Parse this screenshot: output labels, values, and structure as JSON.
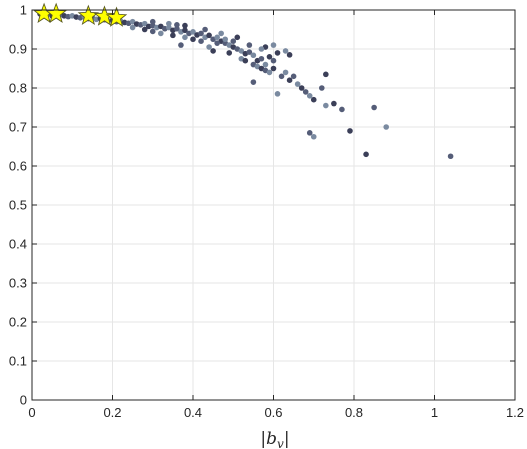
{
  "chart_data": {
    "type": "scatter",
    "xlabel": "|b_v|",
    "xlabel_parts": {
      "bar_left": "|",
      "var": "b",
      "sub": "v",
      "bar_right": "|"
    },
    "xlim": [
      0,
      1.2
    ],
    "ylim": [
      0,
      1
    ],
    "grid": true,
    "x_ticks": [
      0,
      0.2,
      0.4,
      0.6,
      0.8,
      1,
      1.2
    ],
    "x_tick_labels": [
      "0",
      "0.2",
      "0.4",
      "0.6",
      "0.8",
      "1",
      "1.2"
    ],
    "y_ticks": [
      0,
      0.1,
      0.2,
      0.3,
      0.4,
      0.5,
      0.6,
      0.7,
      0.8,
      0.9,
      1
    ],
    "y_tick_labels": [
      "0",
      "0.1",
      "0.2",
      "0.3",
      "0.4",
      "0.5",
      "0.6",
      "0.7",
      "0.8",
      "0.9",
      "1"
    ],
    "colors": {
      "point_dark": "#3b3f58",
      "point_mid": "#555d78",
      "point_light": "#7a8aa0",
      "star_fill": "#ffff00",
      "star_stroke": "#5a5a20",
      "grid": "#e6e6e6",
      "axis": "#262626"
    },
    "series": [
      {
        "marker": "circle",
        "points": [
          [
            0.02,
            0.99
          ],
          [
            0.03,
            0.995
          ],
          [
            0.04,
            0.99
          ],
          [
            0.05,
            0.985
          ],
          [
            0.06,
            0.99
          ],
          [
            0.07,
            0.987
          ],
          [
            0.08,
            0.985
          ],
          [
            0.09,
            0.983
          ],
          [
            0.1,
            0.985
          ],
          [
            0.11,
            0.982
          ],
          [
            0.12,
            0.98
          ],
          [
            0.13,
            0.983
          ],
          [
            0.14,
            0.978
          ],
          [
            0.15,
            0.98
          ],
          [
            0.16,
            0.976
          ],
          [
            0.17,
            0.978
          ],
          [
            0.18,
            0.975
          ],
          [
            0.19,
            0.972
          ],
          [
            0.2,
            0.974
          ],
          [
            0.21,
            0.97
          ],
          [
            0.22,
            0.972
          ],
          [
            0.23,
            0.968
          ],
          [
            0.24,
            0.966
          ],
          [
            0.25,
            0.97
          ],
          [
            0.26,
            0.964
          ],
          [
            0.27,
            0.962
          ],
          [
            0.28,
            0.965
          ],
          [
            0.29,
            0.958
          ],
          [
            0.3,
            0.96
          ],
          [
            0.31,
            0.955
          ],
          [
            0.32,
            0.958
          ],
          [
            0.33,
            0.952
          ],
          [
            0.34,
            0.955
          ],
          [
            0.35,
            0.948
          ],
          [
            0.36,
            0.952
          ],
          [
            0.37,
            0.944
          ],
          [
            0.38,
            0.948
          ],
          [
            0.39,
            0.94
          ],
          [
            0.4,
            0.944
          ],
          [
            0.41,
            0.936
          ],
          [
            0.42,
            0.94
          ],
          [
            0.43,
            0.93
          ],
          [
            0.44,
            0.935
          ],
          [
            0.45,
            0.925
          ],
          [
            0.46,
            0.93
          ],
          [
            0.47,
            0.92
          ],
          [
            0.48,
            0.915
          ],
          [
            0.49,
            0.91
          ],
          [
            0.5,
            0.905
          ],
          [
            0.51,
            0.9
          ],
          [
            0.52,
            0.895
          ],
          [
            0.53,
            0.888
          ],
          [
            0.54,
            0.892
          ],
          [
            0.55,
            0.884
          ],
          [
            0.56,
            0.87
          ],
          [
            0.57,
            0.875
          ],
          [
            0.58,
            0.86
          ],
          [
            0.59,
            0.88
          ],
          [
            0.6,
            0.87
          ],
          [
            0.25,
            0.955
          ],
          [
            0.28,
            0.95
          ],
          [
            0.3,
            0.945
          ],
          [
            0.32,
            0.94
          ],
          [
            0.35,
            0.935
          ],
          [
            0.36,
            0.962
          ],
          [
            0.38,
            0.93
          ],
          [
            0.4,
            0.925
          ],
          [
            0.42,
            0.92
          ],
          [
            0.44,
            0.905
          ],
          [
            0.45,
            0.895
          ],
          [
            0.46,
            0.915
          ],
          [
            0.48,
            0.925
          ],
          [
            0.49,
            0.89
          ],
          [
            0.5,
            0.92
          ],
          [
            0.52,
            0.875
          ],
          [
            0.53,
            0.87
          ],
          [
            0.55,
            0.86
          ],
          [
            0.56,
            0.855
          ],
          [
            0.57,
            0.85
          ],
          [
            0.58,
            0.845
          ],
          [
            0.59,
            0.84
          ],
          [
            0.6,
            0.85
          ],
          [
            0.62,
            0.83
          ],
          [
            0.63,
            0.84
          ],
          [
            0.64,
            0.82
          ],
          [
            0.65,
            0.83
          ],
          [
            0.66,
            0.81
          ],
          [
            0.67,
            0.8
          ],
          [
            0.68,
            0.79
          ],
          [
            0.69,
            0.78
          ],
          [
            0.7,
            0.77
          ],
          [
            0.72,
            0.8
          ],
          [
            0.73,
            0.755
          ],
          [
            0.75,
            0.76
          ],
          [
            0.77,
            0.745
          ],
          [
            0.63,
            0.895
          ],
          [
            0.64,
            0.885
          ],
          [
            0.55,
            0.815
          ],
          [
            0.61,
            0.785
          ],
          [
            0.73,
            0.835
          ],
          [
            0.69,
            0.685
          ],
          [
            0.7,
            0.675
          ],
          [
            0.79,
            0.69
          ],
          [
            0.85,
            0.75
          ],
          [
            0.88,
            0.7
          ],
          [
            0.83,
            0.63
          ],
          [
            1.04,
            0.625
          ],
          [
            0.6,
            0.91
          ],
          [
            0.58,
            0.905
          ],
          [
            0.3,
            0.97
          ],
          [
            0.34,
            0.965
          ],
          [
            0.38,
            0.96
          ],
          [
            0.43,
            0.95
          ],
          [
            0.47,
            0.94
          ],
          [
            0.51,
            0.93
          ],
          [
            0.54,
            0.91
          ],
          [
            0.57,
            0.9
          ],
          [
            0.61,
            0.89
          ],
          [
            0.37,
            0.91
          ]
        ]
      },
      {
        "marker": "star",
        "points": [
          [
            0.03,
            0.99
          ],
          [
            0.06,
            0.99
          ],
          [
            0.14,
            0.985
          ],
          [
            0.18,
            0.983
          ],
          [
            0.21,
            0.98
          ]
        ]
      }
    ]
  }
}
